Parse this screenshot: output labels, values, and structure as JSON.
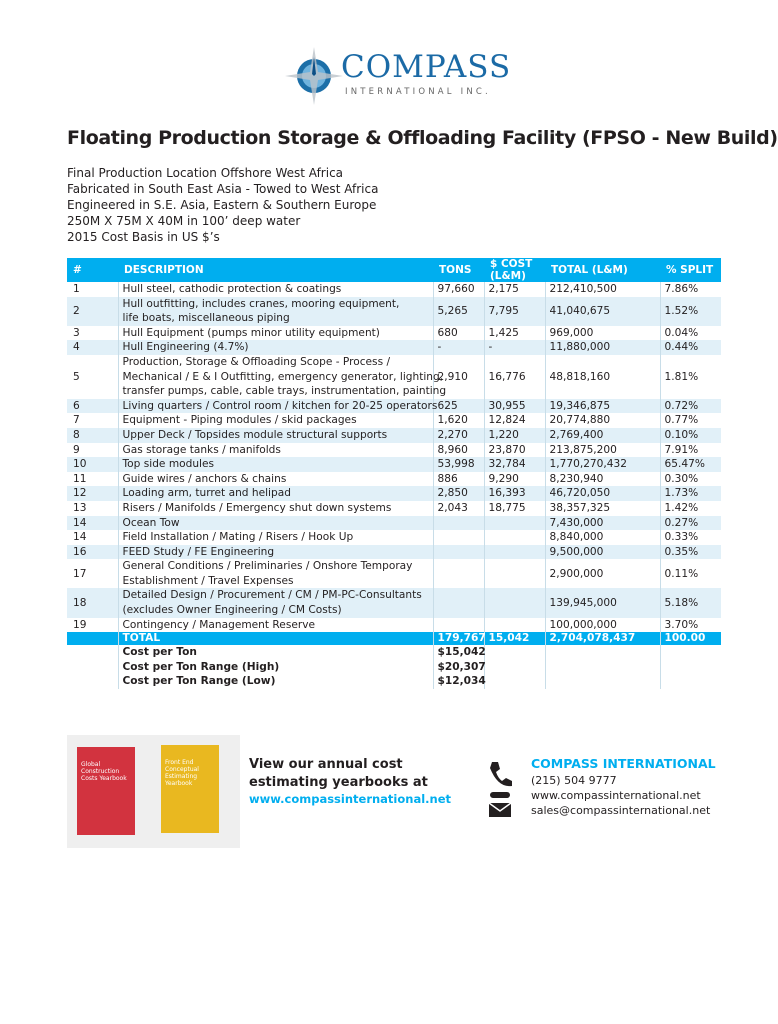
{
  "logo": {
    "name": "COMPASS",
    "sub": "INTERNATIONAL INC."
  },
  "title": "Floating Production Storage & Offloading Facility (FPSO - New Build)",
  "details": [
    "Final Production Location Offshore West Africa",
    "Fabricated in South East Asia - Towed to West Africa",
    "Engineered in S.E. Asia, Eastern & Southern Europe",
    "250M X 75M X 40M in 100’ deep water",
    "2015 Cost Basis in US $’s"
  ],
  "table": {
    "header": [
      "#",
      "DESCRIPTION",
      "TONS",
      "$ COST (L&M)",
      "TOTAL (L&M)",
      "% SPLIT"
    ],
    "rows": [
      {
        "no": "1",
        "description": [
          "Hull steel, cathodic protection & coatings"
        ],
        "tons": "97,660",
        "cost": "2,175",
        "total": "212,410,500",
        "split": "7.86%"
      },
      {
        "no": "2",
        "description": [
          "Hull outfitting, includes cranes, mooring equipment,",
          "life boats, miscellaneous piping"
        ],
        "tons": "5,265",
        "cost": "7,795",
        "total": "41,040,675",
        "split": "1.52%"
      },
      {
        "no": "3",
        "description": [
          "Hull Equipment (pumps minor utility equipment)"
        ],
        "tons": "680",
        "cost": "1,425",
        "total": "969,000",
        "split": "0.04%"
      },
      {
        "no": "4",
        "description": [
          "Hull Engineering (4.7%)"
        ],
        "tons": "-",
        "cost": "-",
        "total": "11,880,000",
        "split": "0.44%"
      },
      {
        "no": "5",
        "description": [
          "Production, Storage & Offloading  Scope - Process /",
          "Mechanical / E & I  Outfitting, emergency generator, lighting,",
          "transfer pumps, cable, cable trays, instrumentation, painting"
        ],
        "tons": "2,910",
        "cost": "16,776",
        "total": "48,818,160",
        "split": "1.81%"
      },
      {
        "no": "6",
        "description": [
          "Living quarters / Control room  / kitchen for 20-25 operators"
        ],
        "tons": "625",
        "cost": "30,955",
        "total": "19,346,875",
        "split": "0.72%"
      },
      {
        "no": "7",
        "description": [
          "Equipment - Piping modules / skid packages"
        ],
        "tons": "1,620",
        "cost": "12,824",
        "total": "20,774,880",
        "split": "0.77%"
      },
      {
        "no": "8",
        "description": [
          "Upper Deck / Topsides module structural supports"
        ],
        "tons": "2,270",
        "cost": "1,220",
        "total": "2,769,400",
        "split": "0.10%"
      },
      {
        "no": "9",
        "description": [
          "Gas storage tanks / manifolds"
        ],
        "tons": "8,960",
        "cost": "23,870",
        "total": "213,875,200",
        "split": "7.91%"
      },
      {
        "no": "10",
        "description": [
          "Top side modules"
        ],
        "tons": "53,998",
        "cost": "32,784",
        "total": "1,770,270,432",
        "split": "65.47%"
      },
      {
        "no": "11",
        "description": [
          "Guide wires / anchors & chains"
        ],
        "tons": "886",
        "cost": "9,290",
        "total": "8,230,940",
        "split": "0.30%"
      },
      {
        "no": "12",
        "description": [
          "Loading arm, turret and helipad"
        ],
        "tons": "2,850",
        "cost": "16,393",
        "total": "46,720,050",
        "split": "1.73%"
      },
      {
        "no": "13",
        "description": [
          "Risers / Manifolds / Emergency shut down systems"
        ],
        "tons": "2,043",
        "cost": "18,775",
        "total": "38,357,325",
        "split": "1.42%"
      },
      {
        "no": "14",
        "description": [
          "Ocean Tow"
        ],
        "total": "7,430,000",
        "split": "0.27%"
      },
      {
        "no": "14",
        "description": [
          "Field Installation / Mating / Risers / Hook Up"
        ],
        "total": "8,840,000",
        "split": "0.33%"
      },
      {
        "no": "16",
        "description": [
          "FEED Study / FE Engineering"
        ],
        "total": "9,500,000",
        "split": "0.35%"
      },
      {
        "no": "17",
        "description": [
          "General Conditions / Preliminaries / Onshore Temporay",
          "Establishment / Travel Expenses"
        ],
        "total": "2,900,000",
        "split": "0.11%"
      },
      {
        "no": "18",
        "description": [
          "Detailed Design  / Procurement / CM / PM-PC-Consultants",
          "(excludes Owner Engineering / CM Costs)"
        ],
        "total": "139,945,000",
        "split": "5.18%"
      },
      {
        "no": "19",
        "description": [
          "Contingency / Management Reserve"
        ],
        "total": "100,000,000",
        "split": "3.70%"
      }
    ],
    "total": {
      "label": "TOTAL",
      "tons": "179,767",
      "cost": "15,042",
      "total": "2,704,078,437",
      "split": "100.00"
    },
    "cost_rows": [
      {
        "label": "Cost per Ton",
        "value": "$15,042"
      },
      {
        "label": "Cost per Ton Range (High)",
        "value": "$20,307"
      },
      {
        "label": "Cost per Ton Range (Low)",
        "value": "$12,034"
      }
    ]
  },
  "promo": {
    "books": [
      [
        "Global",
        "Construction",
        "Costs Yearbook"
      ],
      [
        "Front End",
        "Conceptual",
        "Estimating",
        "Yearbook"
      ]
    ],
    "lines": [
      "View our annual cost",
      "estimating yearbooks at"
    ],
    "url": "www.compassinternational.net"
  },
  "contact": {
    "company": "COMPASS INTERNATIONAL",
    "phone": "(215) 504 9777",
    "web": "www.compassinternational.net",
    "email": "sales@compassinternational.net"
  }
}
